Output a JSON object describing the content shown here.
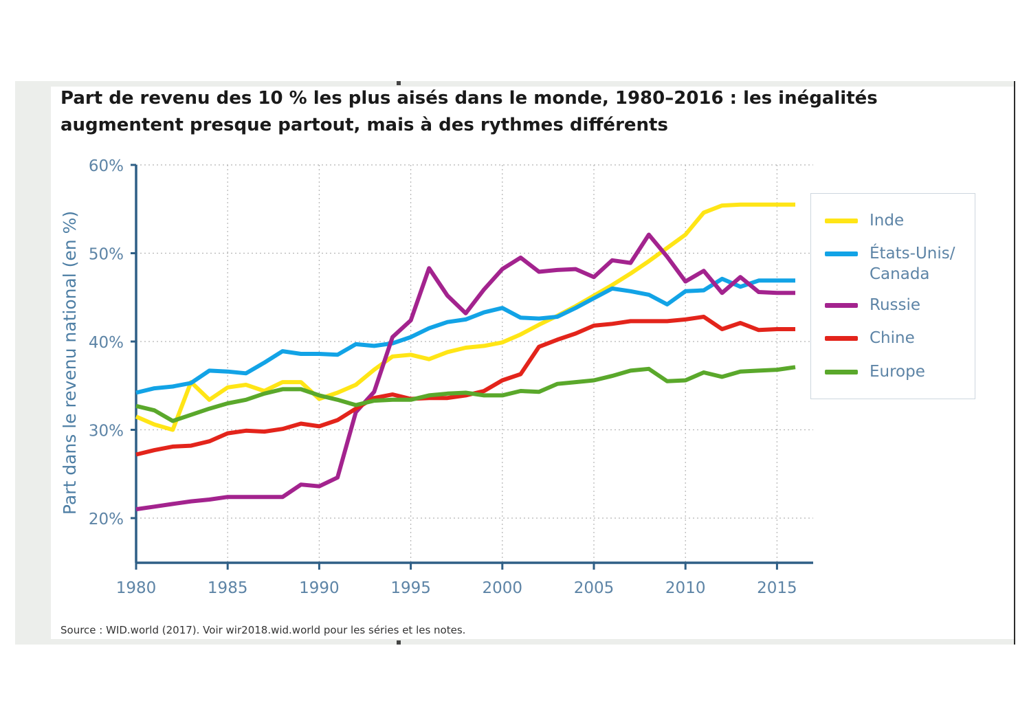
{
  "title": "Part de revenu des 10 % les plus aisés dans le monde, 1980–2016 : les inégalités augmentent presque partout, mais à des rythmes différents",
  "source": "Source : WID.world (2017). Voir wir2018.wid.world pour les séries et les notes.",
  "chart_data": {
    "type": "line",
    "title": "Part de revenu des 10 % les plus aisés dans le monde, 1980–2016 : les inégalités augmentent presque partout, mais à des rythmes différents",
    "xlabel": "",
    "ylabel": "Part dans le revenu national (en %)",
    "xlim": [
      1980,
      2017
    ],
    "ylim": [
      15,
      60
    ],
    "x_ticks": [
      1980,
      1985,
      1990,
      1995,
      2000,
      2005,
      2010,
      2015
    ],
    "x_tick_labels": [
      "1980",
      "1985",
      "1990",
      "1995",
      "2000",
      "2005",
      "2010",
      "2015"
    ],
    "y_ticks": [
      20,
      30,
      40,
      50,
      60
    ],
    "y_tick_labels": [
      "20%",
      "30%",
      "40%",
      "50%",
      "60%"
    ],
    "grid": true,
    "legend_position": "right",
    "x": [
      1980,
      1981,
      1982,
      1983,
      1984,
      1985,
      1986,
      1987,
      1988,
      1989,
      1990,
      1991,
      1992,
      1993,
      1994,
      1995,
      1996,
      1997,
      1998,
      1999,
      2000,
      2001,
      2002,
      2003,
      2004,
      2005,
      2006,
      2007,
      2008,
      2009,
      2010,
      2011,
      2012,
      2013,
      2014,
      2015,
      2016
    ],
    "series": [
      {
        "name": "Inde",
        "color": "#ffe516",
        "values": [
          31.5,
          30.6,
          30.0,
          35.4,
          33.4,
          34.8,
          35.1,
          34.4,
          35.4,
          35.4,
          33.5,
          34.2,
          35.1,
          36.8,
          38.3,
          38.5,
          38.0,
          38.8,
          39.3,
          39.5,
          39.9,
          40.8,
          41.9,
          42.9,
          44.0,
          45.2,
          46.4,
          47.7,
          49.1,
          50.6,
          52.1,
          54.6,
          55.4,
          55.5,
          55.5,
          55.5,
          55.5
        ]
      },
      {
        "name": "États-Unis/\nCanada",
        "color": "#12a3e6",
        "values": [
          34.2,
          34.7,
          34.9,
          35.3,
          36.7,
          36.6,
          36.4,
          37.6,
          38.9,
          38.6,
          38.6,
          38.5,
          39.7,
          39.5,
          39.8,
          40.5,
          41.5,
          42.2,
          42.5,
          43.3,
          43.8,
          42.7,
          42.6,
          42.8,
          43.8,
          44.9,
          46.0,
          45.7,
          45.3,
          44.2,
          45.7,
          45.8,
          47.1,
          46.2,
          46.9,
          46.9,
          46.9
        ]
      },
      {
        "name": "Russie",
        "color": "#a3238e",
        "values": [
          21.0,
          21.3,
          21.6,
          21.9,
          22.1,
          22.4,
          22.4,
          22.4,
          22.4,
          23.8,
          23.6,
          24.6,
          32.0,
          34.3,
          40.5,
          42.4,
          48.3,
          45.2,
          43.2,
          45.9,
          48.2,
          49.5,
          47.9,
          48.1,
          48.2,
          47.3,
          49.2,
          48.9,
          52.1,
          49.6,
          46.8,
          48.0,
          45.5,
          47.3,
          45.6,
          45.5,
          45.5
        ]
      },
      {
        "name": "Chine",
        "color": "#e3241b",
        "values": [
          27.2,
          27.7,
          28.1,
          28.2,
          28.7,
          29.6,
          29.9,
          29.8,
          30.1,
          30.7,
          30.4,
          31.1,
          32.4,
          33.6,
          34.0,
          33.5,
          33.6,
          33.6,
          33.9,
          34.4,
          35.6,
          36.3,
          39.4,
          40.2,
          40.9,
          41.8,
          42.0,
          42.3,
          42.3,
          42.3,
          42.5,
          42.8,
          41.4,
          42.1,
          41.3,
          41.4,
          41.4
        ]
      },
      {
        "name": "Europe",
        "color": "#5aa82b",
        "values": [
          32.7,
          32.2,
          31.0,
          31.7,
          32.4,
          33.0,
          33.4,
          34.1,
          34.6,
          34.6,
          33.9,
          33.4,
          32.8,
          33.3,
          33.4,
          33.4,
          33.9,
          34.1,
          34.2,
          33.9,
          33.9,
          34.4,
          34.3,
          35.2,
          35.4,
          35.6,
          36.1,
          36.7,
          36.9,
          35.5,
          35.6,
          36.5,
          36.0,
          36.6,
          36.7,
          36.8,
          37.1
        ]
      }
    ]
  }
}
